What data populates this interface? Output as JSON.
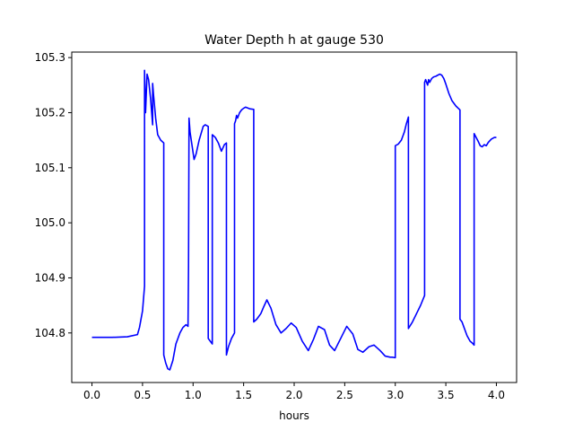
{
  "chart_data": {
    "type": "line",
    "title": "Water Depth h at gauge 530",
    "xlabel": "hours",
    "ylabel": "",
    "xlim": [
      -0.2,
      4.2
    ],
    "ylim": [
      104.71,
      105.31
    ],
    "xticks": [
      0.0,
      0.5,
      1.0,
      1.5,
      2.0,
      2.5,
      3.0,
      3.5,
      4.0
    ],
    "xtick_labels": [
      "0.0",
      "0.5",
      "1.0",
      "1.5",
      "2.0",
      "2.5",
      "3.0",
      "3.5",
      "4.0"
    ],
    "yticks": [
      104.8,
      104.9,
      105.0,
      105.1,
      105.2,
      105.3
    ],
    "ytick_labels": [
      "104.8",
      "104.9",
      "105.0",
      "105.1",
      "105.2",
      "105.3"
    ],
    "grid": false,
    "series": [
      {
        "color": "#0000ff",
        "x": [
          0.0,
          0.2,
          0.35,
          0.45,
          0.47,
          0.5,
          0.52,
          0.52,
          0.53,
          0.545,
          0.56,
          0.58,
          0.6,
          0.6,
          0.61,
          0.63,
          0.65,
          0.68,
          0.71,
          0.71,
          0.73,
          0.75,
          0.77,
          0.8,
          0.83,
          0.87,
          0.9,
          0.93,
          0.95,
          0.955,
          0.96,
          0.97,
          0.99,
          1.01,
          1.03,
          1.06,
          1.1,
          1.12,
          1.15,
          1.15,
          1.17,
          1.19,
          1.19,
          1.22,
          1.25,
          1.28,
          1.31,
          1.33,
          1.33,
          1.35,
          1.38,
          1.41,
          1.41,
          1.42,
          1.43,
          1.44,
          1.46,
          1.48,
          1.5,
          1.52,
          1.56,
          1.6,
          1.6,
          1.63,
          1.67,
          1.7,
          1.73,
          1.77,
          1.82,
          1.87,
          1.92,
          1.97,
          2.02,
          2.08,
          2.14,
          2.19,
          2.24,
          2.3,
          2.35,
          2.4,
          2.46,
          2.52,
          2.58,
          2.63,
          2.68,
          2.74,
          2.79,
          2.85,
          2.9,
          2.95,
          2.97,
          3.0,
          3.0,
          3.03,
          3.06,
          3.09,
          3.11,
          3.13,
          3.13,
          3.17,
          3.21,
          3.25,
          3.29,
          3.29,
          3.3,
          3.32,
          3.33,
          3.34,
          3.36,
          3.38,
          3.4,
          3.42,
          3.44,
          3.46,
          3.48,
          3.5,
          3.53,
          3.56,
          3.6,
          3.64,
          3.64,
          3.66,
          3.68,
          3.71,
          3.74,
          3.76,
          3.78,
          3.78,
          3.8,
          3.82,
          3.84,
          3.86,
          3.88,
          3.9,
          3.92,
          3.95,
          3.98,
          4.0
        ],
        "y": [
          104.792,
          104.792,
          104.793,
          104.797,
          104.81,
          104.84,
          104.885,
          105.277,
          105.2,
          105.27,
          105.26,
          105.225,
          105.178,
          105.253,
          105.23,
          105.19,
          105.16,
          105.15,
          105.145,
          104.76,
          104.745,
          104.735,
          104.733,
          104.75,
          104.78,
          104.8,
          104.81,
          104.815,
          104.812,
          104.92,
          105.19,
          105.165,
          105.14,
          105.115,
          105.125,
          105.15,
          105.175,
          105.178,
          105.175,
          104.79,
          104.785,
          104.78,
          105.16,
          105.155,
          105.145,
          105.13,
          105.142,
          105.145,
          104.76,
          104.775,
          104.79,
          104.8,
          105.18,
          105.185,
          105.195,
          105.19,
          105.2,
          105.205,
          105.208,
          105.21,
          105.207,
          105.206,
          104.82,
          104.825,
          104.835,
          104.848,
          104.86,
          104.845,
          104.815,
          104.8,
          104.808,
          104.818,
          104.81,
          104.785,
          104.768,
          104.788,
          104.812,
          104.806,
          104.778,
          104.768,
          104.79,
          104.812,
          104.798,
          104.77,
          104.765,
          104.775,
          104.778,
          104.768,
          104.758,
          104.756,
          104.756,
          104.755,
          105.14,
          105.143,
          105.15,
          105.165,
          105.18,
          105.192,
          104.808,
          104.82,
          104.835,
          104.85,
          104.868,
          105.255,
          105.26,
          105.25,
          105.26,
          105.255,
          105.262,
          105.265,
          105.266,
          105.268,
          105.27,
          105.268,
          105.262,
          105.252,
          105.235,
          105.222,
          105.212,
          105.205,
          104.825,
          104.82,
          104.81,
          104.795,
          104.785,
          104.782,
          104.778,
          105.162,
          105.155,
          105.148,
          105.14,
          105.138,
          105.142,
          105.14,
          105.146,
          105.152,
          105.155,
          105.155
        ]
      }
    ]
  }
}
